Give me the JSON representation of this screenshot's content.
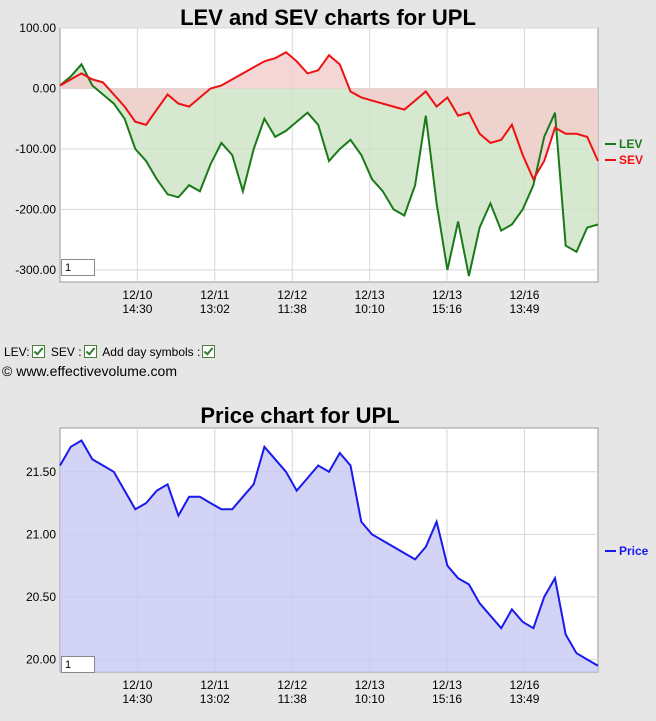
{
  "top_chart": {
    "zoom_value": "1",
    "legend": [
      {
        "label": "LEV",
        "color": "#1a7a1a"
      },
      {
        "label": "SEV",
        "color": "#ee1111"
      }
    ]
  },
  "controls": {
    "lev_label": "LEV:",
    "sev_label": "SEV :",
    "day_symbols_label": "Add day symbols :"
  },
  "copyright": "© www.effectivevolume.com",
  "price_chart": {
    "zoom_value": "1",
    "legend": [
      {
        "label": "Price",
        "color": "#1a1aee"
      }
    ]
  },
  "chart_data": [
    {
      "type": "line",
      "title": "LEV and SEV charts for UPL",
      "xlabel": "",
      "ylabel": "",
      "ylim": [
        -320,
        100
      ],
      "yticks": [
        "100.00",
        "0.00",
        "-100.00",
        "-200.00",
        "-300.00"
      ],
      "xticks": [
        {
          "date": "12/10",
          "time": "14:30"
        },
        {
          "date": "12/11",
          "time": "13:02"
        },
        {
          "date": "12/12",
          "time": "11:38"
        },
        {
          "date": "12/13",
          "time": "10:10"
        },
        {
          "date": "12/13",
          "time": "15:16"
        },
        {
          "date": "12/16",
          "time": "13:49"
        }
      ],
      "grid": true,
      "legend_position": "right",
      "series": [
        {
          "name": "LEV",
          "color": "#1a7a1a",
          "fill": "#cce3c4",
          "x": [
            0,
            2,
            4,
            6,
            8,
            10,
            12,
            14,
            16,
            18,
            20,
            22,
            24,
            26,
            28,
            30,
            32,
            34,
            36,
            38,
            40,
            42,
            44,
            46,
            48,
            50,
            52,
            54,
            56,
            58,
            60,
            62,
            64,
            66,
            68,
            70,
            72,
            74,
            76,
            78,
            80,
            82,
            84,
            86,
            88,
            90,
            92,
            94,
            96,
            98,
            100
          ],
          "values": [
            5,
            20,
            40,
            5,
            -10,
            -25,
            -50,
            -100,
            -120,
            -150,
            -175,
            -180,
            -160,
            -170,
            -125,
            -90,
            -110,
            -170,
            -100,
            -50,
            -80,
            -70,
            -55,
            -40,
            -60,
            -120,
            -100,
            -85,
            -110,
            -150,
            -170,
            -200,
            -210,
            -160,
            -45,
            -190,
            -300,
            -220,
            -310,
            -230,
            -190,
            -235,
            -225,
            -200,
            -160,
            -80,
            -40,
            -260,
            -270,
            -230,
            -225
          ]
        },
        {
          "name": "SEV",
          "color": "#ee1111",
          "fill": "#f2cccc",
          "x": [
            0,
            2,
            4,
            6,
            8,
            10,
            12,
            14,
            16,
            18,
            20,
            22,
            24,
            26,
            28,
            30,
            32,
            34,
            36,
            38,
            40,
            42,
            44,
            46,
            48,
            50,
            52,
            54,
            56,
            58,
            60,
            62,
            64,
            66,
            68,
            70,
            72,
            74,
            76,
            78,
            80,
            82,
            84,
            86,
            88,
            90,
            92,
            94,
            96,
            98,
            100
          ],
          "values": [
            5,
            15,
            25,
            15,
            10,
            -10,
            -30,
            -55,
            -60,
            -35,
            -10,
            -25,
            -30,
            -15,
            0,
            5,
            15,
            25,
            35,
            45,
            50,
            60,
            45,
            25,
            30,
            55,
            40,
            -5,
            -15,
            -20,
            -25,
            -30,
            -35,
            -20,
            -5,
            -30,
            -15,
            -45,
            -40,
            -75,
            -90,
            -85,
            -60,
            -110,
            -150,
            -120,
            -65,
            -75,
            -75,
            -80,
            -120
          ]
        }
      ]
    },
    {
      "type": "area",
      "title": "Price chart for UPL",
      "xlabel": "",
      "ylabel": "",
      "ylim": [
        19.9,
        21.85
      ],
      "yticks": [
        "21.50",
        "21.00",
        "20.50",
        "20.00"
      ],
      "xticks": [
        {
          "date": "12/10",
          "time": "14:30"
        },
        {
          "date": "12/11",
          "time": "13:02"
        },
        {
          "date": "12/12",
          "time": "11:38"
        },
        {
          "date": "12/13",
          "time": "10:10"
        },
        {
          "date": "12/13",
          "time": "15:16"
        },
        {
          "date": "12/16",
          "time": "13:49"
        }
      ],
      "grid": true,
      "legend_position": "right",
      "series": [
        {
          "name": "Price",
          "color": "#1a1aee",
          "fill": "#c8c8f2",
          "x": [
            0,
            2,
            4,
            6,
            8,
            10,
            12,
            14,
            16,
            18,
            20,
            22,
            24,
            26,
            28,
            30,
            32,
            34,
            36,
            38,
            40,
            42,
            44,
            46,
            48,
            50,
            52,
            54,
            56,
            58,
            60,
            62,
            64,
            66,
            68,
            70,
            72,
            74,
            76,
            78,
            80,
            82,
            84,
            86,
            88,
            90,
            92,
            94,
            96,
            98,
            100
          ],
          "values": [
            21.55,
            21.7,
            21.75,
            21.6,
            21.55,
            21.5,
            21.35,
            21.2,
            21.25,
            21.35,
            21.4,
            21.15,
            21.3,
            21.3,
            21.25,
            21.2,
            21.2,
            21.3,
            21.4,
            21.7,
            21.6,
            21.5,
            21.35,
            21.45,
            21.55,
            21.5,
            21.65,
            21.55,
            21.1,
            21.0,
            20.95,
            20.9,
            20.85,
            20.8,
            20.9,
            21.1,
            20.75,
            20.65,
            20.6,
            20.45,
            20.35,
            20.25,
            20.4,
            20.3,
            20.25,
            20.5,
            20.65,
            20.2,
            20.05,
            20.0,
            19.95
          ]
        }
      ]
    }
  ]
}
